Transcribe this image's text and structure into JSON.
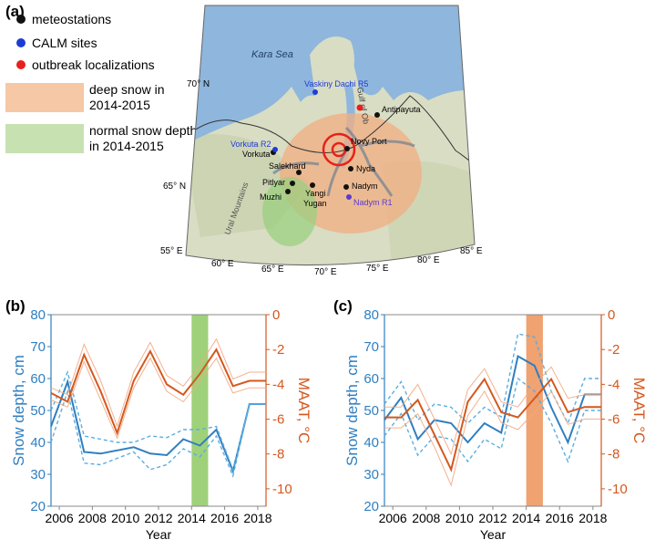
{
  "figure": {
    "panel_labels": [
      "(a)",
      "(b)",
      "(c)"
    ]
  },
  "map": {
    "legend": [
      {
        "label": "meteostations",
        "color": "#111111",
        "shape": "dot"
      },
      {
        "label": "CALM sites",
        "color": "#1f3bd6",
        "shape": "dot"
      },
      {
        "label": "outbreak localizations",
        "color": "#e8201c",
        "shape": "dot"
      },
      {
        "label": "deep snow in\n2014-2015",
        "color": "#f6c8a6",
        "shape": "box"
      },
      {
        "label": "normal snow depth\nin 2014-2015",
        "color": "#c7e1b0",
        "shape": "box"
      }
    ],
    "sea_label": "Kara Sea",
    "gulf_label": "Gulf of Ob",
    "mountains_label": "Ural Mountains",
    "lat_labels": [
      "70° N",
      "65° N"
    ],
    "lon_labels": [
      "55° E",
      "60° E",
      "65° E",
      "70° E",
      "75° E",
      "80° E",
      "85° E"
    ],
    "meteostations": [
      "Antipayuta",
      "Novy Port",
      "Nyda",
      "Nadym",
      "Salekhard",
      "Vorkuta",
      "Pitlyar",
      "Muzhi",
      "Yangi Yugan"
    ],
    "calm_sites": [
      "Vaskiny Dachi R5",
      "Vorkuta R2",
      "Nadym R1"
    ],
    "colors": {
      "land": "#d8ddc4",
      "sea": "#8fb6dc",
      "deep_snow": "#f2ad82",
      "normal_snow": "#9ccf80",
      "river": "#6f7f93"
    }
  },
  "chart_data": [
    {
      "panel": "(b)",
      "type": "line",
      "xlabel": "Year",
      "ylabel_left": "Snow depth, cm",
      "ylabel_right": "MAAT, °C",
      "xlim": [
        2005.5,
        2018.5
      ],
      "ylim_left": [
        20,
        80
      ],
      "ylim_right": [
        -11,
        0
      ],
      "xticks": [
        "2006",
        "2008",
        "2010",
        "2012",
        "2014",
        "2016",
        "2018"
      ],
      "yticks_left": [
        "20",
        "30",
        "40",
        "50",
        "60",
        "70",
        "80"
      ],
      "yticks_right": [
        "-10",
        "-8",
        "-6",
        "-4",
        "-2",
        "0"
      ],
      "highlight": {
        "from": 2014,
        "to": 2015,
        "color": "#9fd17a"
      },
      "x": [
        2005.5,
        2006.5,
        2007.5,
        2008.5,
        2009.5,
        2010.5,
        2011.5,
        2012.5,
        2013.5,
        2014.5,
        2015.5,
        2016.5,
        2017.5,
        2018.5
      ],
      "series": [
        {
          "axis": "left",
          "style": "solid",
          "color": "#2f7fc1",
          "values": [
            45,
            59,
            37,
            36.5,
            37.5,
            38.5,
            36.5,
            36,
            41,
            39,
            44,
            31,
            52,
            52
          ]
        },
        {
          "axis": "left",
          "style": "dashed",
          "color": "#5aaee0",
          "values": [
            50,
            62,
            42,
            41,
            40,
            40,
            42,
            41.5,
            44,
            44,
            45,
            31.5,
            52,
            52
          ]
        },
        {
          "axis": "left",
          "style": "dashed",
          "color": "#5aaee0",
          "values": [
            40,
            56,
            33.5,
            33,
            35,
            37,
            31.5,
            33,
            38,
            35.5,
            42,
            29.5,
            52,
            52
          ]
        },
        {
          "axis": "right",
          "style": "solid",
          "color": "#d4581e",
          "values": [
            -4.5,
            -5,
            -2.3,
            -4.4,
            -6.8,
            -3.8,
            -2.1,
            -4,
            -4.6,
            -3.4,
            -2,
            -4.1,
            -3.8,
            -3.8
          ]
        },
        {
          "axis": "right",
          "style": "thin",
          "color": "#f3a882",
          "values": [
            -4.2,
            -4.6,
            -1.7,
            -3.8,
            -6.4,
            -3.3,
            -1.6,
            -3.5,
            -4.1,
            -2.9,
            -1.4,
            -3.7,
            -3.3,
            -3.3
          ]
        },
        {
          "axis": "right",
          "style": "thin",
          "color": "#f3a882",
          "values": [
            -4.9,
            -5.3,
            -2.7,
            -4.9,
            -7.1,
            -4.2,
            -2.5,
            -4.4,
            -5,
            -3.8,
            -2.5,
            -4.5,
            -4.2,
            -4.2
          ]
        }
      ]
    },
    {
      "panel": "(c)",
      "type": "line",
      "xlabel": "Year",
      "ylabel_left": "Snow depth, cm",
      "ylabel_right": "MAAT, °C",
      "xlim": [
        2005.5,
        2018.5
      ],
      "ylim_left": [
        20,
        80
      ],
      "ylim_right": [
        -11,
        0
      ],
      "xticks": [
        "2006",
        "2008",
        "2010",
        "2012",
        "2014",
        "2016",
        "2018"
      ],
      "yticks_left": [
        "20",
        "30",
        "40",
        "50",
        "60",
        "70",
        "80"
      ],
      "yticks_right": [
        "-10",
        "-8",
        "-6",
        "-4",
        "-2",
        "0"
      ],
      "highlight": {
        "from": 2014,
        "to": 2015,
        "color": "#f0a271"
      },
      "x": [
        2005.5,
        2006.5,
        2007.5,
        2008.5,
        2009.5,
        2010.5,
        2011.5,
        2012.5,
        2013.5,
        2014.5,
        2015.5,
        2016.5,
        2017.5,
        2018.5
      ],
      "series": [
        {
          "axis": "left",
          "style": "solid",
          "color": "#2f7fc1",
          "values": [
            47,
            54,
            41,
            47,
            46,
            40,
            46,
            43,
            67,
            64,
            51,
            40,
            55,
            55
          ]
        },
        {
          "axis": "left",
          "style": "dashed",
          "color": "#5aaee0",
          "values": [
            52,
            59,
            47,
            52,
            51,
            46,
            51,
            48,
            74,
            73,
            56,
            46,
            60,
            60
          ]
        },
        {
          "axis": "left",
          "style": "dashed",
          "color": "#5aaee0",
          "values": [
            42,
            49,
            36,
            42,
            41,
            34,
            41,
            38,
            60,
            56,
            46,
            34,
            50,
            50
          ]
        },
        {
          "axis": "right",
          "style": "solid",
          "color": "#d4581e",
          "values": [
            -5.9,
            -5.9,
            -4.9,
            -6.9,
            -8.9,
            -5,
            -3.7,
            -5.6,
            -5.9,
            -4.8,
            -3.7,
            -5.6,
            -5.3,
            -5.3
          ]
        },
        {
          "axis": "right",
          "style": "thin",
          "color": "#f3a882",
          "values": [
            -5.3,
            -5.3,
            -4,
            -6,
            -8,
            -4.3,
            -3.1,
            -5,
            -5.3,
            -4,
            -3,
            -4.8,
            -4.6,
            -4.6
          ]
        },
        {
          "axis": "right",
          "style": "thin",
          "color": "#f3a882",
          "values": [
            -6.5,
            -6.5,
            -5.7,
            -7.6,
            -9.8,
            -5.8,
            -4.4,
            -6.2,
            -6.6,
            -5.6,
            -4.4,
            -6.3,
            -6,
            -6
          ]
        }
      ]
    }
  ]
}
